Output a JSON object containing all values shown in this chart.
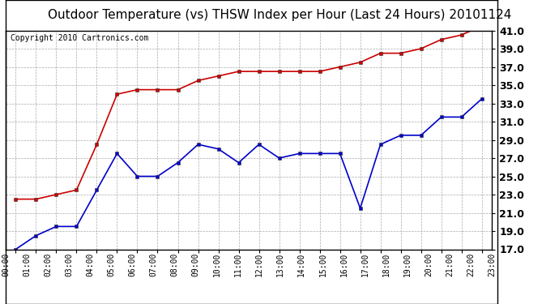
{
  "title": "Outdoor Temperature (vs) THSW Index per Hour (Last 24 Hours) 20101124",
  "copyright": "Copyright 2010 Cartronics.com",
  "hours": [
    "00:00",
    "01:00",
    "02:00",
    "03:00",
    "04:00",
    "05:00",
    "06:00",
    "07:00",
    "08:00",
    "09:00",
    "10:00",
    "11:00",
    "12:00",
    "13:00",
    "14:00",
    "15:00",
    "16:00",
    "17:00",
    "18:00",
    "19:00",
    "20:00",
    "21:00",
    "22:00",
    "23:00"
  ],
  "temp": [
    22.5,
    22.5,
    23.0,
    23.5,
    28.5,
    34.0,
    34.5,
    34.5,
    34.5,
    35.5,
    36.0,
    36.5,
    36.5,
    36.5,
    36.5,
    36.5,
    37.0,
    37.5,
    38.5,
    38.5,
    39.0,
    40.0,
    40.5,
    41.5
  ],
  "thsw": [
    17.0,
    18.5,
    19.5,
    19.5,
    23.5,
    27.5,
    25.0,
    25.0,
    26.5,
    28.5,
    28.0,
    26.5,
    28.5,
    27.0,
    27.5,
    27.5,
    27.5,
    21.5,
    28.5,
    29.5,
    29.5,
    31.5,
    31.5,
    33.5
  ],
  "temp_color": "#cc0000",
  "thsw_color": "#0000cc",
  "ylim_min": 17.0,
  "ylim_max": 41.0,
  "yticks": [
    17.0,
    19.0,
    21.0,
    23.0,
    25.0,
    27.0,
    29.0,
    31.0,
    33.0,
    35.0,
    37.0,
    39.0,
    41.0
  ],
  "bg_color": "#ffffff",
  "grid_color": "#aaaaaa",
  "title_fontsize": 11,
  "copyright_fontsize": 7,
  "ytick_fontsize": 9,
  "xtick_fontsize": 7
}
